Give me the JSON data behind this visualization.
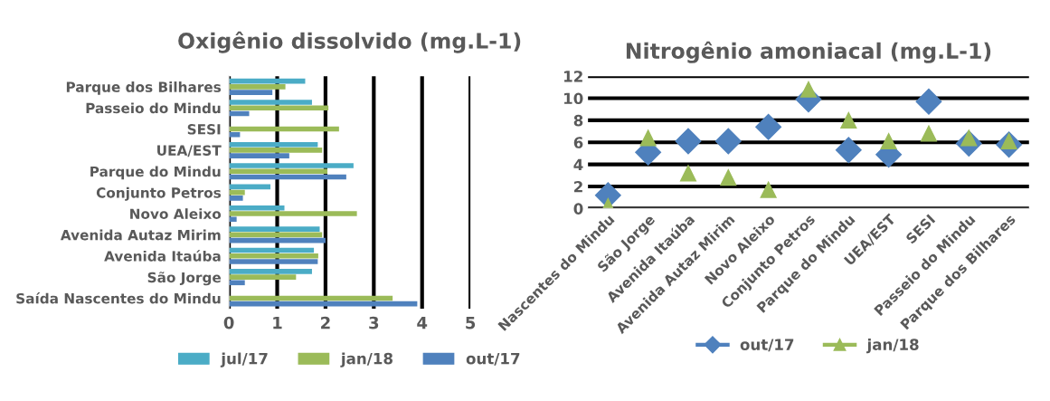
{
  "chart_data": [
    {
      "type": "bar",
      "orientation": "horizontal",
      "title": "Oxigênio dissolvido (mg.L-1)",
      "categories": [
        "Parque dos Bilhares",
        "Passeio do Mindu",
        "SESI",
        "UEA/EST",
        "Parque do Mindu",
        "Conjunto Petros",
        "Novo Aleixo",
        "Avenida Autaz Mirim",
        "Avenida Itaúba",
        "São Jorge",
        "Saída Nascentes do Mindu"
      ],
      "series": [
        {
          "name": "jul/17",
          "color": "#4bacc6",
          "values": [
            1.58,
            1.72,
            0,
            1.84,
            2.58,
            0.86,
            1.15,
            1.88,
            1.76,
            1.72,
            0
          ]
        },
        {
          "name": "jan/18",
          "color": "#9bbb59",
          "values": [
            1.17,
            2.06,
            2.28,
            1.93,
            2.04,
            0.33,
            2.65,
            1.93,
            1.85,
            1.39,
            3.39
          ]
        },
        {
          "name": "out/17",
          "color": "#4f81bd",
          "values": [
            0.9,
            0.42,
            0.23,
            1.25,
            2.43,
            0.29,
            0.16,
            2.0,
            1.84,
            0.33,
            3.9
          ]
        }
      ],
      "xlim": [
        0,
        5
      ],
      "xticks": [
        0,
        1,
        2,
        3,
        4,
        5
      ],
      "grid": "x",
      "legend": "bottom"
    },
    {
      "type": "scatter",
      "title": "Nitrogênio amoniacal (mg.L-1)",
      "categories": [
        "Nascentes do Mindu",
        "São Jorge",
        "Avenida Itaúba",
        "Avenida Autaz Mirim",
        "Novo Aleixo",
        "Conjunto Petros",
        "Parque do Mindu",
        "UEA/EST",
        "SESI",
        "Passeio do Mindu",
        "Parque dos Bilhares"
      ],
      "series": [
        {
          "name": "out/17",
          "color": "#4f81bd",
          "marker": "diamond",
          "values": [
            1.2,
            5.1,
            6.1,
            6.1,
            7.4,
            9.9,
            5.3,
            4.9,
            9.7,
            5.9,
            5.8
          ]
        },
        {
          "name": "jan/18",
          "color": "#9bbb59",
          "marker": "triangle",
          "values": [
            0.2,
            6.4,
            3.2,
            2.8,
            1.7,
            10.8,
            8.0,
            6.1,
            6.8,
            6.4,
            6.1
          ]
        }
      ],
      "ylim": [
        0,
        12
      ],
      "yticks": [
        0,
        2,
        4,
        6,
        8,
        10,
        12
      ],
      "grid": "y",
      "legend": "bottom"
    }
  ]
}
